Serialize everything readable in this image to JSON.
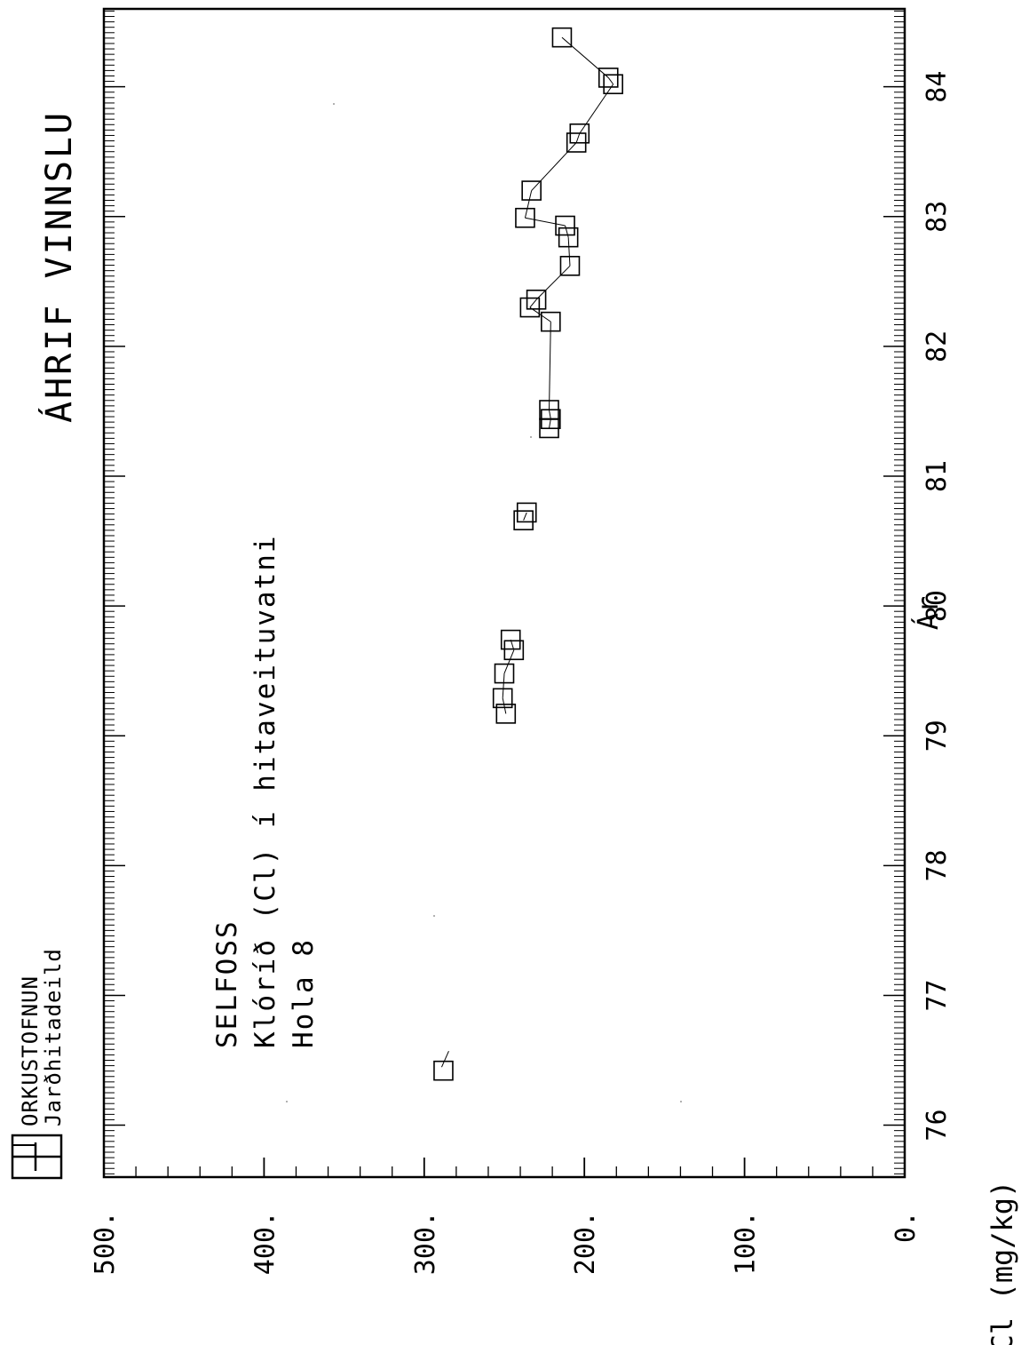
{
  "header": {
    "org_name": "ORKUSTOFNUN",
    "department": "Jarðhitadeild",
    "title": "ÁHRIF VINNSLU"
  },
  "annotation": {
    "line1": "SELFOSS",
    "line2": "Klóríð  (Cl)  í hitaveituvatni",
    "line3": "Hola 8"
  },
  "chart_data": {
    "type": "line",
    "title": "ÁHRIF VINNSLU",
    "xlabel": "Ár",
    "ylabel": "Cl  (mg/kg)",
    "xlim": [
      75.6,
      84.6
    ],
    "ylim": [
      0,
      500
    ],
    "x_ticks": [
      "76",
      "77",
      "78",
      "79",
      "80",
      "81",
      "82",
      "83",
      "84"
    ],
    "y_ticks": [
      "0.",
      "100.",
      "200.",
      "300.",
      "400.",
      "500."
    ],
    "grid": false,
    "marker": "square",
    "series": [
      {
        "points": [
          {
            "x": 76.42,
            "y": 288
          },
          {
            "x": 79.17,
            "y": 249
          },
          {
            "x": 79.29,
            "y": 251
          },
          {
            "x": 79.48,
            "y": 250
          },
          {
            "x": 79.66,
            "y": 244
          },
          {
            "x": 79.74,
            "y": 246
          },
          {
            "x": 80.66,
            "y": 238
          },
          {
            "x": 80.72,
            "y": 236
          },
          {
            "x": 81.37,
            "y": 222
          },
          {
            "x": 81.44,
            "y": 221
          },
          {
            "x": 81.51,
            "y": 222
          },
          {
            "x": 82.19,
            "y": 221
          },
          {
            "x": 82.3,
            "y": 234
          },
          {
            "x": 82.36,
            "y": 230
          },
          {
            "x": 82.62,
            "y": 209
          },
          {
            "x": 82.84,
            "y": 210
          },
          {
            "x": 82.93,
            "y": 212
          },
          {
            "x": 82.99,
            "y": 237
          },
          {
            "x": 83.2,
            "y": 233
          },
          {
            "x": 83.57,
            "y": 205
          },
          {
            "x": 83.64,
            "y": 203
          },
          {
            "x": 84.02,
            "y": 182
          },
          {
            "x": 84.07,
            "y": 185
          },
          {
            "x": 84.38,
            "y": 214
          }
        ]
      }
    ]
  }
}
